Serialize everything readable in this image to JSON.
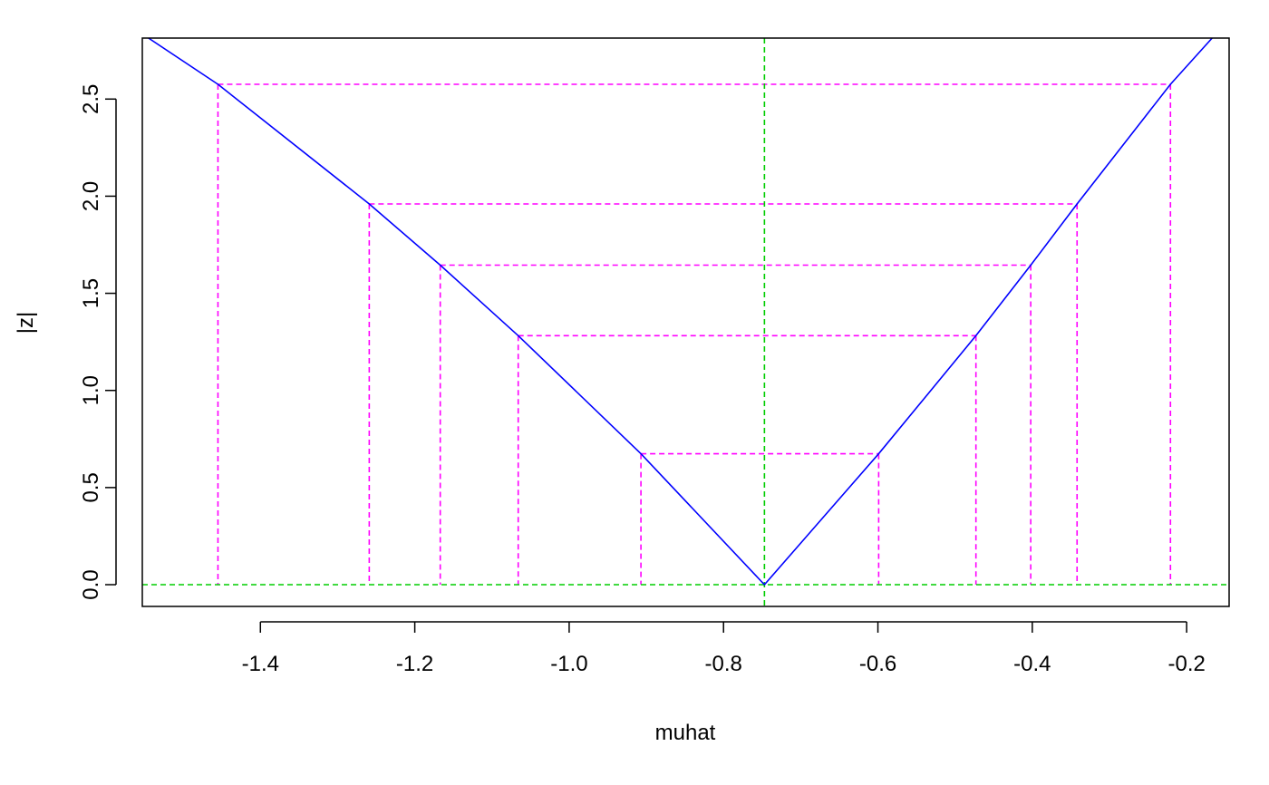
{
  "chart_data": {
    "type": "line",
    "title": "",
    "xlabel": "muhat",
    "ylabel": "|z|",
    "xlim": [
      -1.553,
      -0.145
    ],
    "ylim": [
      -0.112,
      2.814
    ],
    "x_ticks": [
      -1.4,
      -1.2,
      -1.0,
      -0.8,
      -0.6,
      -0.4,
      -0.2
    ],
    "x_tick_labels": [
      "-1.4",
      "-1.2",
      "-1.0",
      "-0.8",
      "-0.6",
      "-0.4",
      "-0.2"
    ],
    "y_ticks": [
      0.0,
      0.5,
      1.0,
      1.5,
      2.0,
      2.5
    ],
    "y_tick_labels": [
      "0.0",
      "0.5",
      "1.0",
      "1.5",
      "2.0",
      "2.5"
    ],
    "grid": false,
    "series": [
      {
        "color": "#0000ff",
        "x": [
          -1.545,
          -1.455,
          -1.259,
          -1.167,
          -1.066,
          -0.907,
          -0.747,
          -0.599,
          -0.473,
          -0.402,
          -0.342,
          -0.221,
          -0.167
        ],
        "y": [
          2.814,
          2.576,
          1.96,
          1.645,
          1.282,
          0.674,
          0.0,
          0.674,
          1.282,
          1.645,
          1.96,
          2.576,
          2.814
        ]
      }
    ],
    "reference_lines": {
      "color": "#00cd00",
      "style": "dashed",
      "vertical_x": -0.747,
      "horizontal_y": 0.0
    },
    "critical_values": {
      "color": "#ff00ff",
      "style": "dashed",
      "levels": [
        {
          "z": 0.674,
          "lower": -0.907,
          "upper": -0.599
        },
        {
          "z": 1.282,
          "lower": -1.066,
          "upper": -0.473
        },
        {
          "z": 1.645,
          "lower": -1.167,
          "upper": -0.402
        },
        {
          "z": 1.96,
          "lower": -1.259,
          "upper": -0.342
        },
        {
          "z": 2.576,
          "lower": -1.455,
          "upper": -0.221
        }
      ]
    }
  }
}
